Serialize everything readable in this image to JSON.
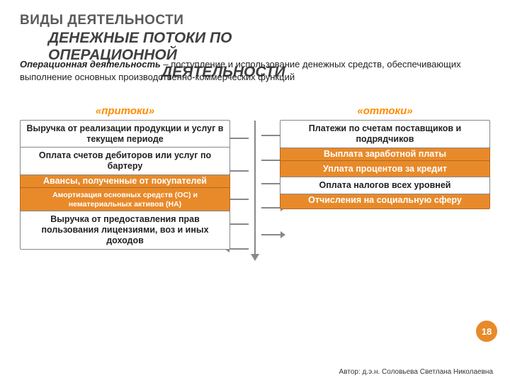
{
  "title": {
    "line1": "ВИДЫ ДЕЯТЕЛЬНОСТИ",
    "line2": "ДЕНЕЖНЫЕ ПОТОКИ ПО",
    "line3": "ОПЕРАЦИОННОЙ",
    "line4": "ДЕЯТЕЛЬНОСТИ"
  },
  "description": {
    "bold": "Операционная деятельность",
    "rest": " – поступление и использование денежных средств, обеспечивающих выполнение основных производственно-коммерческих функций"
  },
  "headers": {
    "left": "«притоки»",
    "right": "«оттоки»"
  },
  "left": [
    {
      "type": "box",
      "text": "Выручка от реализации продукции и услуг в текущем периоде"
    },
    {
      "type": "box",
      "text": "Оплата счетов дебиторов или услуг по бартеру"
    },
    {
      "type": "obox",
      "text": "Авансы, полученные от покупателей"
    },
    {
      "type": "obox",
      "text": "Амортизация основных средств (ОС) и нематериальных активов (НА)",
      "small": true
    },
    {
      "type": "box",
      "text": "Выручка от предоставления прав пользования лицензиями, воз и иных доходов"
    }
  ],
  "right": [
    {
      "type": "box",
      "text": "Платежи по счетам поставщиков и подрядчиков"
    },
    {
      "type": "obox",
      "text": "Выплата заработной платы"
    },
    {
      "type": "obox",
      "text": "Уплата процентов за кредит"
    },
    {
      "type": "box",
      "text": "Оплата налогов всех уровней"
    },
    {
      "type": "obox",
      "text": "Отчисления на социальную сферу"
    }
  ],
  "arrows": {
    "left_y": [
      24,
      70,
      110,
      145,
      180
    ],
    "right_y": [
      20,
      55,
      88,
      122,
      160
    ]
  },
  "page": "18",
  "author": "Автор: д.э.н. Соловьева Светлана Николаевна",
  "colors": {
    "accent": "#e88a2a",
    "accent_border": "#b36a1f",
    "head": "#ff8c00",
    "box_border": "#888",
    "title_gray": "#5a5a5a",
    "title_dark": "#404040"
  }
}
